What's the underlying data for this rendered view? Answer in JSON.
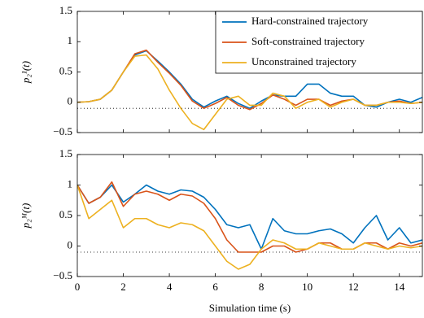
{
  "chart_data": [
    {
      "type": "line",
      "ylabel": "p₂¹(t)",
      "x": [
        0,
        0.5,
        1,
        1.5,
        2,
        2.5,
        3,
        3.5,
        4,
        4.5,
        5,
        5.5,
        6,
        6.5,
        7,
        7.5,
        8,
        8.5,
        9,
        9.5,
        10,
        10.5,
        11,
        11.5,
        12,
        12.5,
        13,
        13.5,
        14,
        14.5,
        15
      ],
      "series": [
        {
          "name": "Hard-constrained trajectory",
          "color": "#0072bd",
          "values": [
            0,
            0.01,
            0.05,
            0.2,
            0.5,
            0.78,
            0.85,
            0.68,
            0.5,
            0.3,
            0.05,
            -0.08,
            0.02,
            0.1,
            -0.02,
            -0.1,
            0.02,
            0.12,
            0.1,
            0.1,
            0.3,
            0.3,
            0.15,
            0.1,
            0.1,
            -0.05,
            -0.08,
            0.0,
            0.05,
            0.0,
            0.08
          ]
        },
        {
          "name": "Soft-constrained trajectory",
          "color": "#d95319",
          "values": [
            0,
            0.01,
            0.05,
            0.2,
            0.5,
            0.8,
            0.86,
            0.66,
            0.48,
            0.28,
            0.02,
            -0.1,
            -0.02,
            0.08,
            -0.05,
            -0.12,
            -0.02,
            0.12,
            0.05,
            -0.05,
            0.05,
            0.05,
            -0.05,
            0.02,
            0.05,
            -0.05,
            -0.05,
            0.0,
            0.02,
            -0.02,
            0.0
          ]
        },
        {
          "name": "Unconstrained trajectory",
          "color": "#edb120",
          "values": [
            0,
            0.01,
            0.05,
            0.2,
            0.5,
            0.76,
            0.78,
            0.55,
            0.2,
            -0.1,
            -0.35,
            -0.45,
            -0.2,
            0.05,
            0.1,
            -0.05,
            -0.05,
            0.15,
            0.1,
            -0.1,
            0.0,
            0.05,
            -0.08,
            0.0,
            0.05,
            -0.05,
            -0.05,
            0.0,
            0.0,
            -0.02,
            0.0
          ]
        }
      ],
      "xlim": [
        0,
        15
      ],
      "xticks": [
        0,
        2,
        4,
        6,
        8,
        10,
        12,
        14
      ],
      "xtick_labels": false,
      "ylim": [
        -0.5,
        1.5
      ],
      "yticks": [
        {
          "value": -0.5,
          "label": "−0.5"
        },
        0,
        0.5,
        1,
        1.5
      ],
      "hline": -0.1,
      "legend": "upper right"
    },
    {
      "type": "line",
      "ylabel": "p₂ᴹ(t)",
      "xlabel": "Simulation time (s)",
      "x": [
        0,
        0.5,
        1,
        1.5,
        2,
        2.5,
        3,
        3.5,
        4,
        4.5,
        5,
        5.5,
        6,
        6.5,
        7,
        7.5,
        8,
        8.5,
        9,
        9.5,
        10,
        10.5,
        11,
        11.5,
        12,
        12.5,
        13,
        13.5,
        14,
        14.5,
        15
      ],
      "series": [
        {
          "color": "#0072bd",
          "values": [
            1,
            0.7,
            0.8,
            1.0,
            0.72,
            0.85,
            1.0,
            0.9,
            0.85,
            0.92,
            0.9,
            0.8,
            0.6,
            0.35,
            0.3,
            0.35,
            -0.05,
            0.45,
            0.25,
            0.2,
            0.2,
            0.25,
            0.28,
            0.2,
            0.05,
            0.3,
            0.5,
            0.1,
            0.3,
            0.05,
            0.1
          ]
        },
        {
          "color": "#d95319",
          "values": [
            1,
            0.7,
            0.8,
            1.05,
            0.65,
            0.85,
            0.9,
            0.85,
            0.75,
            0.85,
            0.82,
            0.7,
            0.45,
            0.1,
            -0.1,
            -0.1,
            -0.1,
            0.0,
            0.0,
            -0.1,
            -0.05,
            0.05,
            0.05,
            -0.05,
            -0.05,
            0.05,
            0.05,
            -0.05,
            0.05,
            0.0,
            0.05
          ]
        },
        {
          "color": "#edb120",
          "values": [
            1,
            0.45,
            0.6,
            0.75,
            0.3,
            0.45,
            0.45,
            0.35,
            0.3,
            0.38,
            0.35,
            0.25,
            0.0,
            -0.25,
            -0.38,
            -0.3,
            -0.05,
            0.1,
            0.05,
            -0.05,
            -0.05,
            0.05,
            0.0,
            -0.05,
            -0.05,
            0.05,
            0.0,
            -0.05,
            0.0,
            -0.03,
            0.0
          ]
        }
      ],
      "xlim": [
        0,
        15
      ],
      "xticks": [
        0,
        2,
        4,
        6,
        8,
        10,
        12,
        14
      ],
      "xtick_labels": true,
      "ylim": [
        -0.5,
        1.5
      ],
      "yticks": [
        {
          "value": -0.5,
          "label": "−0.5"
        },
        0,
        0.5,
        1,
        1.5
      ],
      "hline": -0.1
    }
  ]
}
